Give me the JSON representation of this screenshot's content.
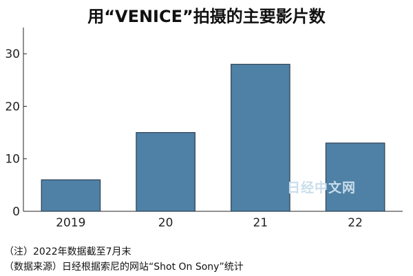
{
  "chart_data": {
    "type": "bar",
    "title": "用“VENICE”拍摄的主要影片数",
    "categories": [
      "2019",
      "20",
      "21",
      "22"
    ],
    "values": [
      6,
      15,
      28,
      13
    ],
    "ylim": [
      0,
      35
    ],
    "yticks": [
      0,
      10,
      20,
      30
    ],
    "xlabel": "",
    "ylabel": "",
    "grid": false,
    "bar_color": "#4f81a6",
    "bar_edge_color": "#2b3f52"
  },
  "notes": [
    "（注）2022年数据截至7月末",
    "（数据来源）日经根据索尼的网站“Shot On Sony”统计"
  ],
  "watermark": "日经中文网"
}
